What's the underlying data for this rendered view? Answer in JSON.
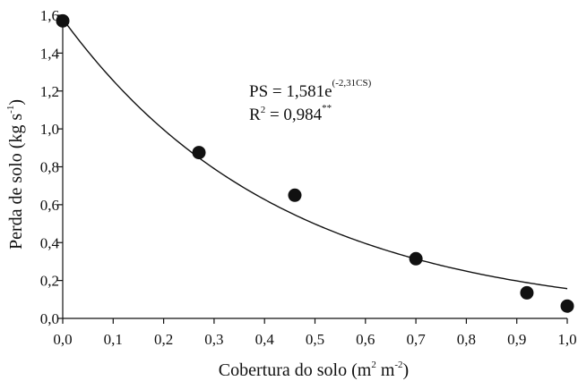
{
  "chart_data": {
    "type": "scatter",
    "xlabel": {
      "main": "Cobertura do solo (m",
      "sup1": "2",
      "mid": " m",
      "sup2": "-2",
      "end": ")"
    },
    "ylabel": {
      "main": "Perda de solo (kg s",
      "sup": "-1",
      "end": ")"
    },
    "xlim": [
      0.0,
      1.0
    ],
    "ylim": [
      0.0,
      1.6
    ],
    "x_ticks": [
      "0,0",
      "0,1",
      "0,2",
      "0,3",
      "0,4",
      "0,5",
      "0,6",
      "0,7",
      "0,8",
      "0,9",
      "1,0"
    ],
    "y_ticks": [
      "0,0",
      "0,2",
      "0,4",
      "0,6",
      "0,8",
      "1,0",
      "1,2",
      "1,4",
      "1,6"
    ],
    "series": [
      {
        "points": [
          {
            "x": 0.0,
            "y": 1.57
          },
          {
            "x": 0.27,
            "y": 0.875
          },
          {
            "x": 0.46,
            "y": 0.65
          },
          {
            "x": 0.7,
            "y": 0.315
          },
          {
            "x": 0.92,
            "y": 0.135
          },
          {
            "x": 1.0,
            "y": 0.065
          }
        ]
      }
    ],
    "fit": {
      "type": "exponential",
      "a": 1.581,
      "b": -2.31,
      "x_range": [
        0.0,
        1.0
      ]
    },
    "equation": {
      "line1_main": "PS = 1,581e",
      "line1_sup": "(-2,31CS)",
      "line2_r": "R",
      "line2_sup": "2",
      "line2_main": " = 0,984",
      "line2_stars": "**"
    },
    "grid": false,
    "legend": "none"
  }
}
